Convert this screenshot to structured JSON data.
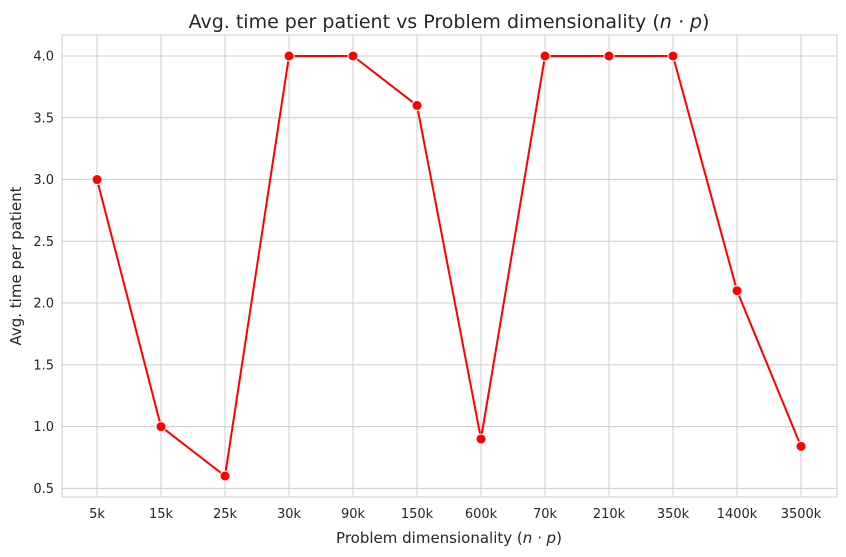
{
  "chart_data": {
    "type": "line",
    "title_main": "Avg. time per patient vs Problem dimensionality (",
    "title_math": "n · p",
    "title_close": ")",
    "xlabel_main": "Problem dimensionality (",
    "xlabel_math": "n · p",
    "xlabel_close": ")",
    "ylabel": "Avg. time per patient",
    "categories": [
      "5k",
      "15k",
      "25k",
      "30k",
      "90k",
      "150k",
      "600k",
      "70k",
      "210k",
      "350k",
      "1400k",
      "3500k"
    ],
    "series": [
      {
        "values": [
          3.0,
          1.0,
          0.6,
          4.0,
          4.0,
          3.6,
          0.9,
          4.0,
          4.0,
          4.0,
          2.1,
          0.84
        ],
        "color": "#ff0000"
      }
    ],
    "yticks": [
      0.5,
      1.0,
      1.5,
      2.0,
      2.5,
      3.0,
      3.5,
      4.0
    ],
    "ytick_labels": [
      "0.5",
      "1.0",
      "1.5",
      "2.0",
      "2.5",
      "3.0",
      "3.5",
      "4.0"
    ],
    "ylim": [
      0.43,
      4.17
    ],
    "grid": true,
    "style": "whitegrid",
    "colors": {
      "line": "#ff0000",
      "grid": "#cccccc",
      "frame": "#cccccc",
      "text": "#262626"
    }
  }
}
